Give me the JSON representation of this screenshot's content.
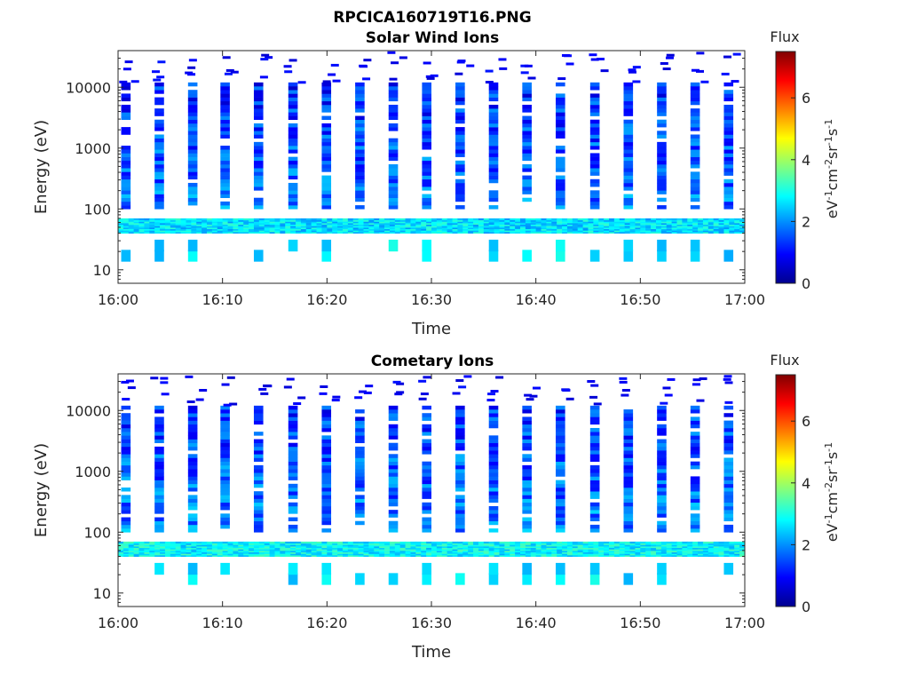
{
  "figure_title": "RPCICA160719T16.PNG",
  "chart_data": [
    {
      "type": "heatmap",
      "title": "Solar Wind Ions",
      "xlabel": "Time",
      "ylabel": "Energy (eV)",
      "x_ticks": [
        "16:00",
        "16:10",
        "16:20",
        "16:30",
        "16:40",
        "16:50",
        "17:00"
      ],
      "x_range_minutes": [
        0,
        60
      ],
      "y_scale": "log",
      "y_range": [
        6,
        40000
      ],
      "y_ticks": [
        "10",
        "100",
        "1000",
        "10000"
      ],
      "y_tick_values": [
        10,
        100,
        1000,
        10000
      ],
      "colorbar": {
        "title": "Flux",
        "unit": "eV-1cm-2sr-1s-1",
        "range": [
          0,
          7.5
        ],
        "ticks": [
          "0",
          "2",
          "4",
          "6"
        ],
        "tick_values": [
          0,
          2,
          4,
          6
        ],
        "colormap": "jet"
      },
      "sweep_columns_minutes": [
        0.3,
        3.5,
        6.7,
        9.8,
        13.0,
        16.3,
        19.5,
        22.7,
        25.9,
        29.1,
        32.3,
        35.5,
        38.7,
        41.9,
        45.2,
        48.4,
        51.6,
        54.8,
        58.0
      ],
      "flux_bands": [
        {
          "e_min": 40,
          "e_max": 70,
          "flux": 2.6,
          "note": "continuous low-energy band"
        },
        {
          "e_min": 100,
          "e_max": 12000,
          "flux": 1.8,
          "note": "periodic energy sweeps"
        }
      ]
    },
    {
      "type": "heatmap",
      "title": "Cometary Ions",
      "xlabel": "Time",
      "ylabel": "Energy (eV)",
      "x_ticks": [
        "16:00",
        "16:10",
        "16:20",
        "16:30",
        "16:40",
        "16:50",
        "17:00"
      ],
      "x_range_minutes": [
        0,
        60
      ],
      "y_scale": "log",
      "y_range": [
        6,
        40000
      ],
      "y_ticks": [
        "10",
        "100",
        "1000",
        "10000"
      ],
      "y_tick_values": [
        10,
        100,
        1000,
        10000
      ],
      "colorbar": {
        "title": "Flux",
        "unit": "eV-1cm-2sr-1s-1",
        "range": [
          0,
          7.5
        ],
        "ticks": [
          "0",
          "2",
          "4",
          "6"
        ],
        "tick_values": [
          0,
          2,
          4,
          6
        ],
        "colormap": "jet"
      },
      "sweep_columns_minutes": [
        0.3,
        3.5,
        6.7,
        9.8,
        13.0,
        16.3,
        19.5,
        22.7,
        25.9,
        29.1,
        32.3,
        35.5,
        38.7,
        41.9,
        45.2,
        48.4,
        51.6,
        54.8,
        58.0
      ],
      "flux_bands": [
        {
          "e_min": 40,
          "e_max": 70,
          "flux": 2.8,
          "note": "continuous low-energy band"
        },
        {
          "e_min": 100,
          "e_max": 12000,
          "flux": 1.9,
          "note": "periodic energy sweeps"
        }
      ]
    }
  ]
}
